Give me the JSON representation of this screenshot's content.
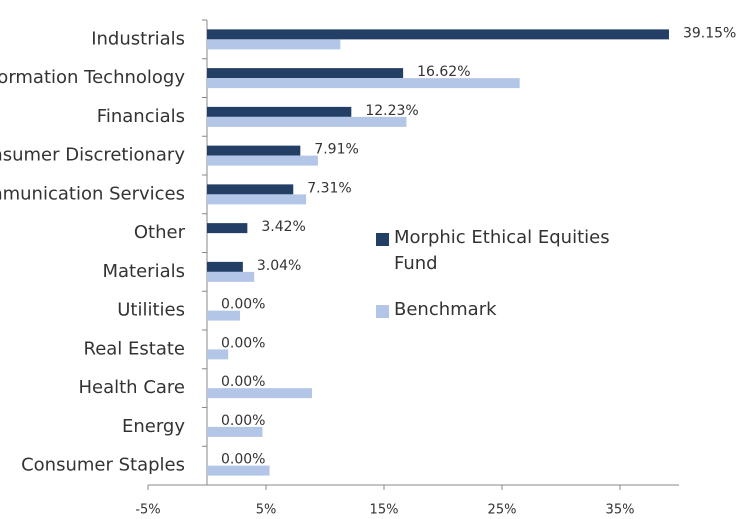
{
  "chart_data": {
    "type": "hbar",
    "categories": [
      "Industrials",
      "Information Technology",
      "Financials",
      "Consumer Discretionary",
      "Communication Services",
      "Other",
      "Materials",
      "Utilities",
      "Real Estate",
      "Health Care",
      "Energy",
      "Consumer Staples"
    ],
    "series": [
      {
        "name": "Morphic Ethical Equities Fund",
        "color": "#243f66",
        "values": [
          39.15,
          16.62,
          12.23,
          7.91,
          7.31,
          3.42,
          3.04,
          0,
          0,
          0,
          0,
          0
        ],
        "value_labels": [
          "39.15%",
          "16.62%",
          "12.23%",
          "7.91%",
          "7.31%",
          "3.42%",
          "3.04%",
          "0.00%",
          "0.00%",
          "0.00%",
          "0.00%",
          "0.00%"
        ]
      },
      {
        "name": "Benchmark",
        "color": "#b4c6e7",
        "values": [
          11.3,
          26.5,
          16.9,
          9.4,
          8.4,
          0,
          4.0,
          2.8,
          1.8,
          8.9,
          4.7,
          5.3
        ]
      }
    ],
    "xlim": [
      -5,
      40
    ],
    "xticks": [
      {
        "value": -5,
        "label": "-5%"
      },
      {
        "value": 5,
        "label": "5%"
      },
      {
        "value": 15,
        "label": "15%"
      },
      {
        "value": 25,
        "label": "25%"
      },
      {
        "value": 35,
        "label": "35%"
      }
    ]
  }
}
